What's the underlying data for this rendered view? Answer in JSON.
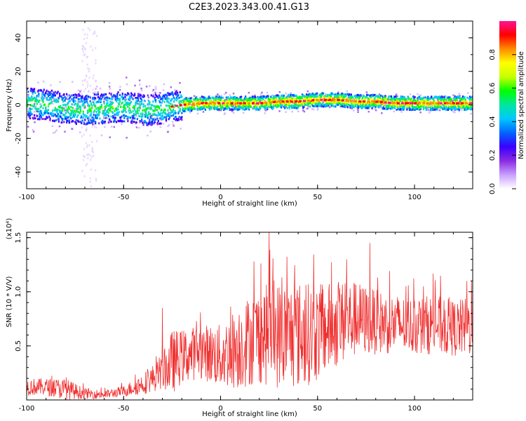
{
  "title": "C2E3.2023.343.00.41.G13",
  "chart_data": [
    {
      "type": "heatmap",
      "xlabel": "Height of straight line (km)",
      "ylabel": "Frequency (Hz)",
      "xlim": [
        -100,
        130
      ],
      "ylim": [
        -50,
        50
      ],
      "xticks": [
        -100,
        -50,
        0,
        50,
        100
      ],
      "yticks": [
        -40,
        -20,
        0,
        20,
        40
      ],
      "colorbar": {
        "label": "Normalized spectral amplitude",
        "range": [
          0.0,
          1.0
        ],
        "ticks": [
          "0.0",
          "0.2",
          "0.4",
          "0.6",
          "0.8"
        ],
        "colormap": [
          "#ffffff",
          "#c8a0ff",
          "#8a2be2",
          "#3a00ff",
          "#0064ff",
          "#00c8ff",
          "#00e6a0",
          "#00ff00",
          "#c8ff00",
          "#ffff00",
          "#ff8c00",
          "#ff0000",
          "#ff1493"
        ]
      },
      "ridge": {
        "x": [
          -100,
          -90,
          -80,
          -70,
          -60,
          -50,
          -45,
          -40,
          -35,
          -30,
          -25,
          -20,
          -10,
          0,
          10,
          20,
          30,
          40,
          50,
          60,
          70,
          80,
          90,
          100,
          110,
          120,
          130
        ],
        "freq": [
          1,
          0,
          -2,
          -3,
          -2,
          -1,
          -2,
          -3,
          -3,
          -2,
          -1,
          0,
          1,
          1,
          1,
          1,
          2,
          2,
          3,
          3,
          2,
          2,
          1,
          1,
          1,
          1,
          1
        ]
      }
    },
    {
      "type": "line",
      "xlabel": "Height of straight line (km)",
      "ylabel": "SNR (10 * V/V)",
      "ymultiplier": "(x10⁴)",
      "xlim": [
        -100,
        130
      ],
      "ylim": [
        0,
        1.55
      ],
      "xticks": [
        -100,
        -50,
        0,
        50,
        100
      ],
      "yticks": [
        0.5,
        1.0,
        1.5
      ],
      "ytick_labels": [
        "0.5",
        "1.0",
        "1.5"
      ],
      "color": "#f03030",
      "envelope": {
        "x": [
          -100,
          -90,
          -80,
          -70,
          -60,
          -50,
          -40,
          -30,
          -25,
          -20,
          -10,
          0,
          10,
          20,
          30,
          40,
          50,
          60,
          70,
          80,
          90,
          100,
          110,
          120,
          130
        ],
        "mean": [
          0.12,
          0.12,
          0.1,
          0.06,
          0.05,
          0.08,
          0.15,
          0.25,
          0.35,
          0.4,
          0.45,
          0.4,
          0.5,
          0.6,
          0.6,
          0.6,
          0.62,
          0.7,
          0.75,
          0.72,
          0.7,
          0.68,
          0.7,
          0.66,
          0.68
        ],
        "spread": [
          0.08,
          0.08,
          0.1,
          0.05,
          0.04,
          0.05,
          0.1,
          0.15,
          0.3,
          0.25,
          0.25,
          0.3,
          0.4,
          0.45,
          0.5,
          0.5,
          0.45,
          0.4,
          0.35,
          0.3,
          0.28,
          0.26,
          0.28,
          0.26,
          0.28
        ]
      },
      "peaks": [
        {
          "x": -30,
          "y": 0.85
        },
        {
          "x": 25,
          "y": 1.55
        },
        {
          "x": 65,
          "y": 1.3
        },
        {
          "x": 77,
          "y": 1.45
        },
        {
          "x": 127,
          "y": 1.1
        }
      ]
    }
  ]
}
